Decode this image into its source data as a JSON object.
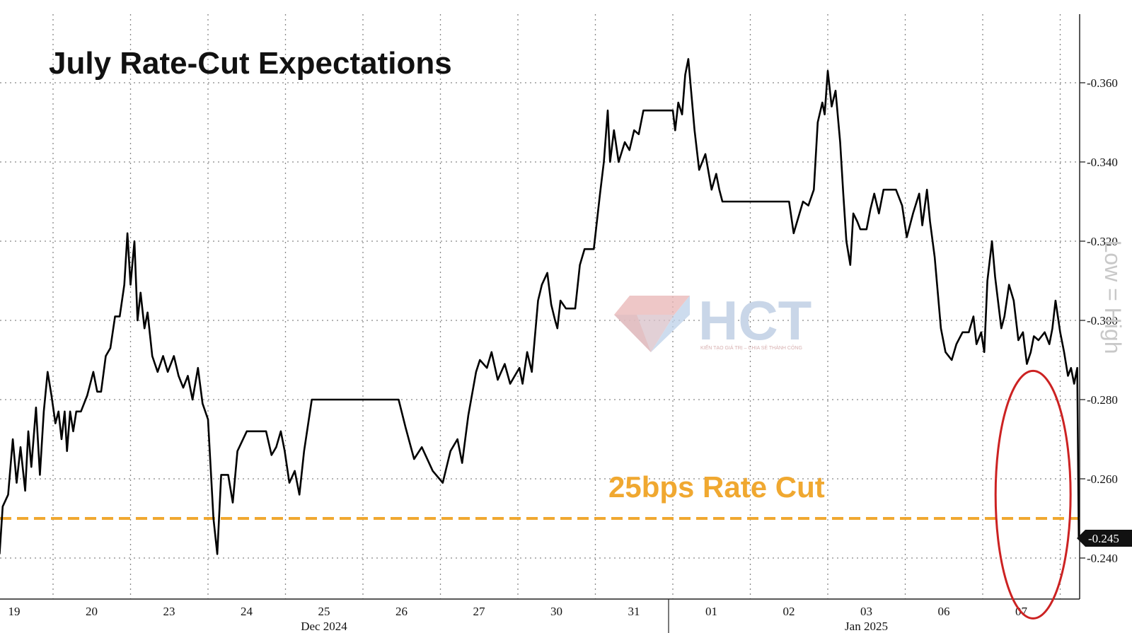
{
  "chart_data": {
    "type": "line",
    "title": "July Rate-Cut Expectations",
    "side_label": "Low = High",
    "watermark": {
      "brand": "HCT",
      "tagline": "KIẾN TẠO GIÁ TRỊ – CHIA SẺ THÀNH CÔNG"
    },
    "ylim": [
      -0.23,
      -0.375
    ],
    "y_ticks": [
      -0.24,
      -0.26,
      -0.28,
      -0.3,
      -0.32,
      -0.34,
      -0.36
    ],
    "y_tick_labels": [
      "-0.240",
      "-0.260",
      "-0.280",
      "-0.300",
      "-0.320",
      "-0.340",
      "-0.360"
    ],
    "x_days": [
      "19",
      "20",
      "23",
      "24",
      "25",
      "26",
      "27",
      "30",
      "31",
      "01",
      "02",
      "03",
      "06",
      "07"
    ],
    "x_month_labels": [
      {
        "text": "Dec 2024",
        "at_day_index": 4
      },
      {
        "text": "Jan 2025",
        "at_day_index": 11
      }
    ],
    "reference_line": {
      "value": -0.25,
      "label": "25bps Rate Cut",
      "color": "#f0a830"
    },
    "last_value": {
      "value": -0.245,
      "label": "-0.245"
    },
    "highlight_ellipse": {
      "center_day": 12.65,
      "center_value": -0.256,
      "color": "#cc2222"
    },
    "series": [
      {
        "color": "#000000",
        "points": [
          [
            -0.69,
            -0.241
          ],
          [
            -0.65,
            -0.253
          ],
          [
            -0.58,
            -0.256
          ],
          [
            -0.52,
            -0.27
          ],
          [
            -0.47,
            -0.259
          ],
          [
            -0.42,
            -0.268
          ],
          [
            -0.36,
            -0.257
          ],
          [
            -0.32,
            -0.272
          ],
          [
            -0.28,
            -0.263
          ],
          [
            -0.22,
            -0.278
          ],
          [
            -0.17,
            -0.261
          ],
          [
            -0.12,
            -0.277
          ],
          [
            -0.07,
            -0.287
          ],
          [
            -0.02,
            -0.281
          ],
          [
            0.03,
            -0.274
          ],
          [
            0.07,
            -0.277
          ],
          [
            0.11,
            -0.27
          ],
          [
            0.15,
            -0.277
          ],
          [
            0.18,
            -0.267
          ],
          [
            0.22,
            -0.277
          ],
          [
            0.26,
            -0.272
          ],
          [
            0.3,
            -0.277
          ],
          [
            0.36,
            -0.277
          ],
          [
            0.44,
            -0.281
          ],
          [
            0.52,
            -0.287
          ],
          [
            0.57,
            -0.282
          ],
          [
            0.62,
            -0.282
          ],
          [
            0.68,
            -0.291
          ],
          [
            0.74,
            -0.293
          ],
          [
            0.8,
            -0.301
          ],
          [
            0.86,
            -0.301
          ],
          [
            0.92,
            -0.309
          ],
          [
            0.96,
            -0.322
          ],
          [
            1.0,
            -0.309
          ],
          [
            1.05,
            -0.32
          ],
          [
            1.09,
            -0.3
          ],
          [
            1.13,
            -0.307
          ],
          [
            1.18,
            -0.298
          ],
          [
            1.22,
            -0.302
          ],
          [
            1.28,
            -0.291
          ],
          [
            1.35,
            -0.287
          ],
          [
            1.42,
            -0.291
          ],
          [
            1.48,
            -0.287
          ],
          [
            1.56,
            -0.291
          ],
          [
            1.62,
            -0.286
          ],
          [
            1.68,
            -0.283
          ],
          [
            1.74,
            -0.286
          ],
          [
            1.8,
            -0.28
          ],
          [
            1.87,
            -0.288
          ],
          [
            1.93,
            -0.279
          ],
          [
            2.0,
            -0.275
          ],
          [
            2.07,
            -0.25
          ],
          [
            2.12,
            -0.241
          ],
          [
            2.17,
            -0.261
          ],
          [
            2.26,
            -0.261
          ],
          [
            2.32,
            -0.254
          ],
          [
            2.38,
            -0.267
          ],
          [
            2.5,
            -0.272
          ],
          [
            2.75,
            -0.272
          ],
          [
            2.82,
            -0.266
          ],
          [
            2.88,
            -0.268
          ],
          [
            2.94,
            -0.272
          ],
          [
            2.99,
            -0.267
          ],
          [
            3.05,
            -0.259
          ],
          [
            3.12,
            -0.262
          ],
          [
            3.18,
            -0.256
          ],
          [
            3.24,
            -0.267
          ],
          [
            3.34,
            -0.28
          ],
          [
            4.46,
            -0.28
          ],
          [
            4.55,
            -0.273
          ],
          [
            4.66,
            -0.265
          ],
          [
            4.76,
            -0.268
          ],
          [
            4.9,
            -0.262
          ],
          [
            5.03,
            -0.259
          ],
          [
            5.13,
            -0.267
          ],
          [
            5.22,
            -0.27
          ],
          [
            5.28,
            -0.264
          ],
          [
            5.36,
            -0.276
          ],
          [
            5.46,
            -0.287
          ],
          [
            5.51,
            -0.29
          ],
          [
            5.6,
            -0.288
          ],
          [
            5.66,
            -0.292
          ],
          [
            5.74,
            -0.285
          ],
          [
            5.83,
            -0.289
          ],
          [
            5.9,
            -0.284
          ],
          [
            5.96,
            -0.286
          ],
          [
            6.02,
            -0.288
          ],
          [
            6.06,
            -0.284
          ],
          [
            6.12,
            -0.292
          ],
          [
            6.18,
            -0.287
          ],
          [
            6.26,
            -0.305
          ],
          [
            6.31,
            -0.309
          ],
          [
            6.38,
            -0.312
          ],
          [
            6.43,
            -0.304
          ],
          [
            6.48,
            -0.3
          ],
          [
            6.51,
            -0.298
          ],
          [
            6.55,
            -0.305
          ],
          [
            6.62,
            -0.303
          ],
          [
            6.74,
            -0.303
          ],
          [
            6.8,
            -0.314
          ],
          [
            6.86,
            -0.318
          ],
          [
            6.98,
            -0.318
          ],
          [
            7.06,
            -0.332
          ],
          [
            7.11,
            -0.34
          ],
          [
            7.16,
            -0.353
          ],
          [
            7.19,
            -0.34
          ],
          [
            7.24,
            -0.348
          ],
          [
            7.3,
            -0.34
          ],
          [
            7.38,
            -0.345
          ],
          [
            7.44,
            -0.343
          ],
          [
            7.5,
            -0.348
          ],
          [
            7.56,
            -0.347
          ],
          [
            7.62,
            -0.353
          ],
          [
            8.0,
            -0.353
          ],
          [
            8.03,
            -0.348
          ],
          [
            8.07,
            -0.355
          ],
          [
            8.12,
            -0.352
          ],
          [
            8.16,
            -0.362
          ],
          [
            8.2,
            -0.366
          ],
          [
            8.28,
            -0.348
          ],
          [
            8.34,
            -0.338
          ],
          [
            8.42,
            -0.342
          ],
          [
            8.5,
            -0.333
          ],
          [
            8.56,
            -0.337
          ],
          [
            8.6,
            -0.333
          ],
          [
            8.64,
            -0.33
          ],
          [
            9.0,
            -0.33
          ],
          [
            9.5,
            -0.33
          ],
          [
            9.56,
            -0.322
          ],
          [
            9.62,
            -0.326
          ],
          [
            9.68,
            -0.33
          ],
          [
            9.75,
            -0.329
          ],
          [
            9.82,
            -0.333
          ],
          [
            9.87,
            -0.35
          ],
          [
            9.93,
            -0.355
          ],
          [
            9.96,
            -0.352
          ],
          [
            10.0,
            -0.363
          ],
          [
            10.05,
            -0.354
          ],
          [
            10.1,
            -0.358
          ],
          [
            10.16,
            -0.345
          ],
          [
            10.2,
            -0.332
          ],
          [
            10.24,
            -0.32
          ],
          [
            10.29,
            -0.314
          ],
          [
            10.33,
            -0.327
          ],
          [
            10.38,
            -0.325
          ],
          [
            10.42,
            -0.323
          ],
          [
            10.5,
            -0.323
          ],
          [
            10.55,
            -0.328
          ],
          [
            10.6,
            -0.332
          ],
          [
            10.66,
            -0.327
          ],
          [
            10.72,
            -0.333
          ],
          [
            10.8,
            -0.333
          ],
          [
            10.88,
            -0.333
          ],
          [
            10.96,
            -0.329
          ],
          [
            11.02,
            -0.321
          ],
          [
            11.1,
            -0.327
          ],
          [
            11.18,
            -0.332
          ],
          [
            11.22,
            -0.324
          ],
          [
            11.28,
            -0.333
          ],
          [
            11.32,
            -0.325
          ],
          [
            11.38,
            -0.316
          ],
          [
            11.46,
            -0.298
          ],
          [
            11.52,
            -0.292
          ],
          [
            11.6,
            -0.29
          ],
          [
            11.66,
            -0.294
          ],
          [
            11.74,
            -0.297
          ],
          [
            11.82,
            -0.297
          ],
          [
            11.88,
            -0.301
          ],
          [
            11.92,
            -0.294
          ],
          [
            11.98,
            -0.297
          ],
          [
            12.02,
            -0.292
          ],
          [
            12.06,
            -0.31
          ],
          [
            12.12,
            -0.32
          ],
          [
            12.16,
            -0.311
          ],
          [
            12.24,
            -0.298
          ],
          [
            12.28,
            -0.301
          ],
          [
            12.34,
            -0.309
          ],
          [
            12.4,
            -0.305
          ],
          [
            12.46,
            -0.295
          ],
          [
            12.52,
            -0.297
          ],
          [
            12.57,
            -0.289
          ],
          [
            12.62,
            -0.292
          ],
          [
            12.66,
            -0.296
          ],
          [
            12.72,
            -0.295
          ],
          [
            12.8,
            -0.297
          ],
          [
            12.86,
            -0.294
          ],
          [
            12.9,
            -0.298
          ],
          [
            12.94,
            -0.305
          ],
          [
            13.0,
            -0.297
          ],
          [
            13.05,
            -0.292
          ],
          [
            13.1,
            -0.286
          ],
          [
            13.14,
            -0.288
          ],
          [
            13.18,
            -0.284
          ],
          [
            13.22,
            -0.288
          ],
          [
            13.24,
            -0.245
          ]
        ]
      }
    ]
  }
}
